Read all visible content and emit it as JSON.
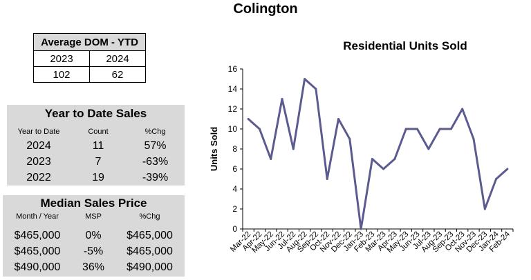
{
  "page_title": "Colington",
  "avg_dom": {
    "title": "Average DOM - YTD",
    "years": [
      "2023",
      "2024"
    ],
    "values": [
      "102",
      "62"
    ]
  },
  "ytd_sales": {
    "title": "Year to Date Sales",
    "headers": [
      "Year to Date",
      "Count",
      "%Chg"
    ],
    "rows": [
      {
        "year": "2024",
        "count": "11",
        "chg": "57%"
      },
      {
        "year": "2023",
        "count": "7",
        "chg": "-63%"
      },
      {
        "year": "2022",
        "count": "19",
        "chg": "-39%"
      }
    ]
  },
  "median_price": {
    "title": "Median Sales Price",
    "headers": [
      "Month / Year",
      "MSP",
      "%Chg"
    ],
    "rows": [
      {
        "a": "$465,000",
        "b": "0%",
        "c": "$465,000"
      },
      {
        "a": "$465,000",
        "b": "-5%",
        "c": "$465,000"
      },
      {
        "a": "$490,000",
        "b": "36%",
        "c": "$490,000"
      }
    ]
  },
  "chart_data": {
    "type": "line",
    "title": "Residential Units Sold",
    "xlabel": "",
    "ylabel": "Units Sold",
    "ylim": [
      0,
      16
    ],
    "yticks": [
      0,
      2,
      4,
      6,
      8,
      10,
      12,
      14,
      16
    ],
    "categories": [
      "Mar-22",
      "Apr-22",
      "May-22",
      "Jun-22",
      "Jul-22",
      "Aug-22",
      "Sep-22",
      "Oct-22",
      "Nov-22",
      "Dec-22",
      "Jan-23",
      "Feb-23",
      "Mar-23",
      "Apr-23",
      "May-23",
      "Jun-23",
      "Jul-23",
      "Aug-23",
      "Sep-23",
      "Oct-23",
      "Nov-23",
      "Dec-23",
      "Jan-24",
      "Feb-24"
    ],
    "series": [
      {
        "name": "Residential Units Sold",
        "values": [
          11,
          10,
          7,
          13,
          8,
          15,
          14,
          5,
          11,
          9,
          0,
          7,
          6,
          7,
          10,
          10,
          8,
          10,
          10,
          12,
          9,
          2,
          5,
          6
        ]
      }
    ],
    "line_color": "#5b5b8f",
    "grid": false,
    "legend": "none"
  }
}
